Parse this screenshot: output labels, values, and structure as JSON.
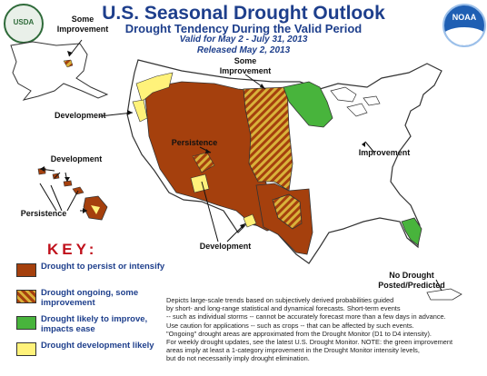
{
  "header": {
    "title": "U.S. Seasonal Drought Outlook",
    "subtitle": "Drought Tendency During the Valid Period",
    "valid": "Valid for May 2 - July 31, 2013",
    "released": "Released May 2, 2013"
  },
  "logos": {
    "usda": "USDA",
    "noaa": "NOAA"
  },
  "map_labels": {
    "alaska_some_improvement": "Some\nImprovement",
    "plains_some_improvement": "Some\nImprovement",
    "west_development": "Development",
    "hawaii_development": "Development",
    "hawaii_persistence": "Persistence",
    "west_persistence": "Persistence",
    "south_development": "Development",
    "east_improvement": "Improvement",
    "puerto_rico": "No Drought\nPosted/Predicted"
  },
  "key": {
    "title": "KEY:",
    "items": [
      {
        "label": "Drought to persist or intensify",
        "color": "#a5400d"
      },
      {
        "label": "Drought ongoing, some improvement",
        "color": "#a5400d/#d9b23a hatched"
      },
      {
        "label": "Drought likely to improve, impacts ease",
        "color": "#48b43c"
      },
      {
        "label": "Drought development likely",
        "color": "#fff27a"
      }
    ]
  },
  "notes": [
    "Depicts large-scale trends based on subjectively derived probabilities guided",
    "by short- and long-range statistical and dynamical forecasts. Short-term events",
    "-- such as individual storms -- cannot be accurately forecast more than a few days in advance.",
    "Use caution for applications -- such as crops -- that can be affected by such events.",
    "\"Ongoing\" drought areas are approximated from the Drought Monitor (D1 to D4 intensity).",
    "For weekly drought updates, see the latest U.S. Drought Monitor. NOTE: the green improvement",
    "areas imply at least a 1-category improvement in the Drought Monitor intensity levels,",
    "but do not necessarily imply drought elimination."
  ]
}
